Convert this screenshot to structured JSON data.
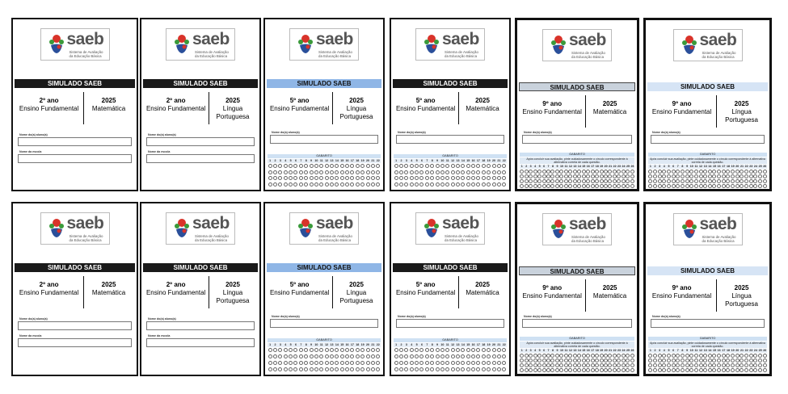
{
  "logo": {
    "word": "saeb",
    "subtitle": [
      "Sistema de Avaliação",
      "da Educação Básica"
    ]
  },
  "banner": "SIMULADO SAEB",
  "field_labels": {
    "student": "Nome do(a) aluno(a)",
    "school": "Nome da escola"
  },
  "gabarito": {
    "title": "GABARITO",
    "note": "Após concluir sua avaliação, pinte cuidadosamente o círculo correspondente à alternativa correta de cada questão."
  },
  "cards": [
    {
      "grade": "2º ano",
      "stage": "Ensino Fundamental",
      "year": "2025",
      "subject": "Matemática",
      "banner_style": "black",
      "variant": "fields2",
      "questions": 0
    },
    {
      "grade": "2º ano",
      "stage": "Ensino Fundamental",
      "year": "2025",
      "subject": "Língua Portuguesa",
      "banner_style": "black",
      "variant": "fields2",
      "questions": 0
    },
    {
      "grade": "5º ano",
      "stage": "Ensino Fundamental",
      "year": "2025",
      "subject": "Língua Portuguesa",
      "banner_style": "blue",
      "variant": "grid",
      "questions": 22
    },
    {
      "grade": "5º ano",
      "stage": "Ensino Fundamental",
      "year": "2025",
      "subject": "Matemática",
      "banner_style": "black",
      "variant": "grid",
      "questions": 22
    },
    {
      "grade": "9º ano",
      "stage": "Ensino Fundamental",
      "year": "2025",
      "subject": "Matemática",
      "banner_style": "gray",
      "variant": "grid_note",
      "questions": 26
    },
    {
      "grade": "9º ano",
      "stage": "Ensino Fundamental",
      "year": "2025",
      "subject": "Língua Portuguesa",
      "banner_style": "light",
      "variant": "grid_note",
      "questions": 26
    }
  ],
  "colors": {
    "logo_red": "#d9332a",
    "logo_green": "#3a9a3a",
    "logo_blue": "#2a4f9a",
    "banner_black": "#1a1a1a",
    "banner_blue": "#8fb6e6"
  }
}
